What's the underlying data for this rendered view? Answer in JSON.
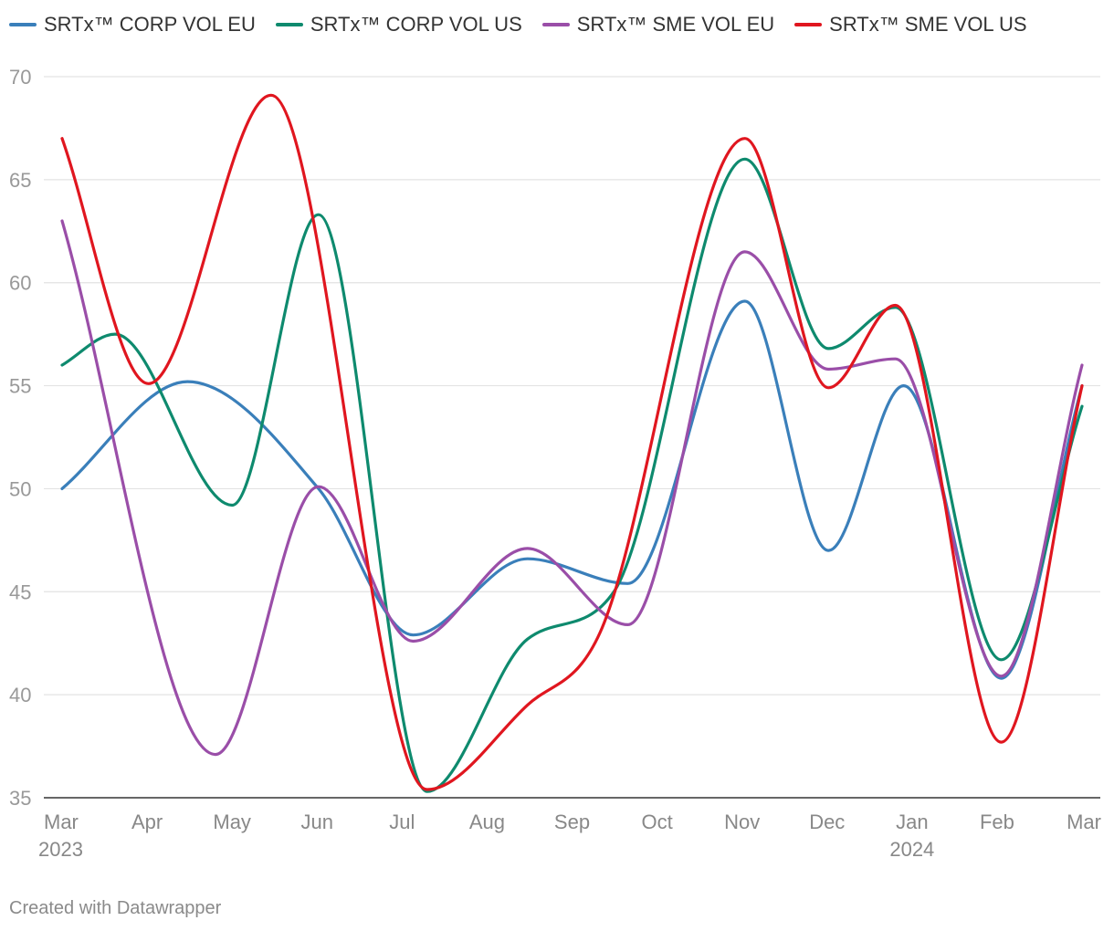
{
  "chart_data": {
    "type": "line",
    "x": [
      "Mar 2023",
      "Apr 2023",
      "May 2023",
      "Jun 2023",
      "Jul 2023",
      "Aug 2023",
      "Sep 2023",
      "Oct 2023",
      "Nov 2023",
      "Dec 2023",
      "Jan 2024",
      "Feb 2024",
      "Mar 2024"
    ],
    "x_tick_labels": [
      {
        "label": "Mar",
        "year": "2023"
      },
      {
        "label": "Apr",
        "year": ""
      },
      {
        "label": "May",
        "year": ""
      },
      {
        "label": "Jun",
        "year": ""
      },
      {
        "label": "Jul",
        "year": ""
      },
      {
        "label": "Aug",
        "year": ""
      },
      {
        "label": "Sep",
        "year": ""
      },
      {
        "label": "Oct",
        "year": ""
      },
      {
        "label": "Nov",
        "year": ""
      },
      {
        "label": "Dec",
        "year": ""
      },
      {
        "label": "Jan",
        "year": "2024"
      },
      {
        "label": "Feb",
        "year": ""
      },
      {
        "label": "Mar",
        "year": ""
      }
    ],
    "y_ticks": [
      35,
      40,
      45,
      50,
      55,
      60,
      65,
      70
    ],
    "ylim": [
      35,
      70
    ],
    "grid": true,
    "legend_position": "top-left",
    "series": [
      {
        "name": "SRTx™ CORP VOL EU",
        "color": "#3a7fba",
        "points": [
          {
            "x": "2023-03-01",
            "y": 50.0
          },
          {
            "x": "2023-04-15",
            "y": 55.2
          },
          {
            "x": "2023-06-01",
            "y": 50.0
          },
          {
            "x": "2023-07-05",
            "y": 42.9
          },
          {
            "x": "2023-08-15",
            "y": 46.6
          },
          {
            "x": "2023-09-20",
            "y": 45.4
          },
          {
            "x": "2023-11-01",
            "y": 59.1
          },
          {
            "x": "2023-12-01",
            "y": 47.0
          },
          {
            "x": "2023-12-28",
            "y": 55.0
          },
          {
            "x": "2024-02-01",
            "y": 40.8
          },
          {
            "x": "2024-03-01",
            "y": 55.0
          }
        ]
      },
      {
        "name": "SRTx™ CORP VOL US",
        "color": "#0e8a6e",
        "points": [
          {
            "x": "2023-03-01",
            "y": 56.0
          },
          {
            "x": "2023-03-20",
            "y": 57.5
          },
          {
            "x": "2023-05-01",
            "y": 49.2
          },
          {
            "x": "2023-06-01",
            "y": 63.3
          },
          {
            "x": "2023-07-10",
            "y": 35.3
          },
          {
            "x": "2023-08-15",
            "y": 42.7
          },
          {
            "x": "2023-09-15",
            "y": 45.0
          },
          {
            "x": "2023-11-01",
            "y": 66.0
          },
          {
            "x": "2023-12-01",
            "y": 56.8
          },
          {
            "x": "2023-12-25",
            "y": 58.8
          },
          {
            "x": "2024-02-01",
            "y": 41.7
          },
          {
            "x": "2024-03-01",
            "y": 54.0
          }
        ]
      },
      {
        "name": "SRTx™ SME VOL EU",
        "color": "#9a4ea8",
        "points": [
          {
            "x": "2023-03-01",
            "y": 63.0
          },
          {
            "x": "2023-04-25",
            "y": 37.1
          },
          {
            "x": "2023-06-01",
            "y": 50.1
          },
          {
            "x": "2023-07-05",
            "y": 42.6
          },
          {
            "x": "2023-08-15",
            "y": 47.1
          },
          {
            "x": "2023-09-20",
            "y": 43.4
          },
          {
            "x": "2023-11-01",
            "y": 61.5
          },
          {
            "x": "2023-12-01",
            "y": 55.8
          },
          {
            "x": "2023-12-25",
            "y": 56.3
          },
          {
            "x": "2024-02-01",
            "y": 40.9
          },
          {
            "x": "2024-03-01",
            "y": 56.0
          }
        ]
      },
      {
        "name": "SRTx™ SME VOL US",
        "color": "#e0161f",
        "points": [
          {
            "x": "2023-03-01",
            "y": 67.0
          },
          {
            "x": "2023-04-01",
            "y": 55.1
          },
          {
            "x": "2023-05-15",
            "y": 69.1
          },
          {
            "x": "2023-07-10",
            "y": 35.4
          },
          {
            "x": "2023-08-15",
            "y": 39.5
          },
          {
            "x": "2023-09-10",
            "y": 43.0
          },
          {
            "x": "2023-11-01",
            "y": 67.0
          },
          {
            "x": "2023-12-01",
            "y": 54.9
          },
          {
            "x": "2023-12-25",
            "y": 58.9
          },
          {
            "x": "2024-02-01",
            "y": 37.7
          },
          {
            "x": "2024-03-01",
            "y": 55.0
          }
        ]
      }
    ]
  },
  "footer": {
    "credit": "Created with Datawrapper"
  }
}
